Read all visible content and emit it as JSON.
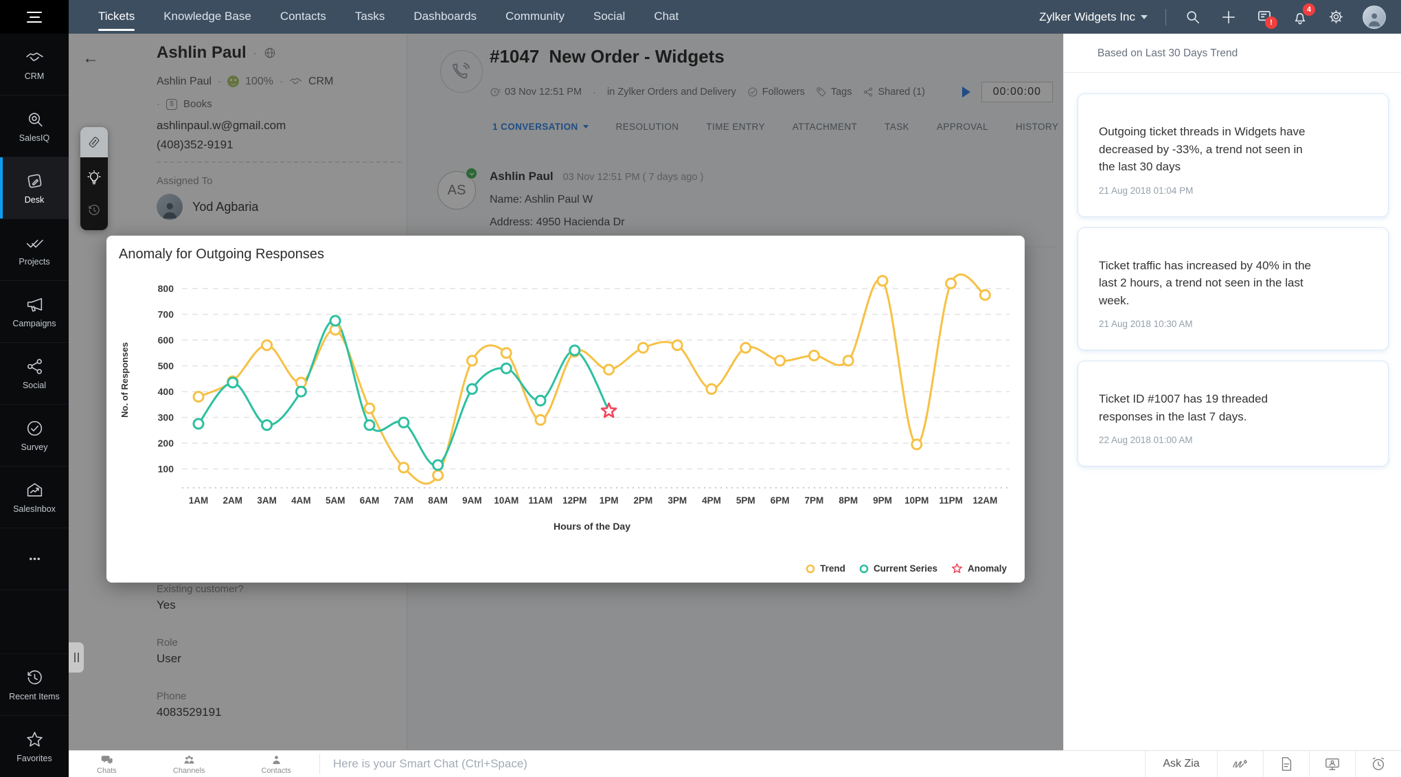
{
  "nav": {
    "items": [
      {
        "label": "Tickets",
        "active": true
      },
      {
        "label": "Knowledge Base"
      },
      {
        "label": "Contacts"
      },
      {
        "label": "Tasks"
      },
      {
        "label": "Dashboards"
      },
      {
        "label": "Community"
      },
      {
        "label": "Social"
      },
      {
        "label": "Chat"
      }
    ],
    "org_name": "Zylker Widgets Inc",
    "notification_count": "4",
    "feedback_badge": "!"
  },
  "sidebar": {
    "items": [
      {
        "label": "CRM",
        "icon": "crm"
      },
      {
        "label": "SalesIQ",
        "icon": "salesiq"
      },
      {
        "label": "Desk",
        "icon": "desk",
        "active": true
      },
      {
        "label": "Projects",
        "icon": "projects"
      },
      {
        "label": "Campaigns",
        "icon": "campaigns"
      },
      {
        "label": "Social",
        "icon": "social"
      },
      {
        "label": "Survey",
        "icon": "survey"
      },
      {
        "label": "SalesInbox",
        "icon": "salesinbox"
      },
      {
        "label": "",
        "icon": "more"
      }
    ],
    "footer_items": [
      {
        "label": "Recent Items",
        "icon": "recent"
      },
      {
        "label": "Favorites",
        "icon": "favorites"
      }
    ]
  },
  "contact": {
    "name": "Ashlin Paul",
    "subname": "Ashlin Paul",
    "score": "100%",
    "crm_label": "CRM",
    "books_label": "Books",
    "books_symbol": "$",
    "email": "ashlinpaul.w@gmail.com",
    "phone_display": "(408)352-9191",
    "assigned_to_label": "Assigned To",
    "assignee": "Yod Agbaria",
    "fields": {
      "existing_label": "Existing customer?",
      "existing_value": "Yes",
      "role_label": "Role",
      "role_value": "User",
      "phone_label": "Phone",
      "phone_value": "4083529191"
    }
  },
  "ticket": {
    "id": "#1047",
    "subject": "New Order - Widgets",
    "created": "03 Nov 12:51 PM",
    "queue": "in Zylker Orders and Delivery",
    "followers_label": "Followers",
    "tags_label": "Tags",
    "shared_label": "Shared (1)",
    "timer": "00:00:00",
    "tabs": [
      {
        "label": "1 CONVERSATION",
        "active": true
      },
      {
        "label": "RESOLUTION"
      },
      {
        "label": "TIME ENTRY"
      },
      {
        "label": "ATTACHMENT"
      },
      {
        "label": "TASK"
      },
      {
        "label": "APPROVAL"
      },
      {
        "label": "HISTORY"
      }
    ]
  },
  "conversation": {
    "avatar_initials": "AS",
    "author": "Ashlin Paul",
    "timestamp": "03 Nov 12:51 PM ( 7 days ago )",
    "line1": "Name: Ashlin Paul W",
    "line2": "Address: 4950 Hacienda Dr"
  },
  "chart_data": {
    "type": "line",
    "title": "Anomaly for Outgoing Responses",
    "xlabel": "Hours of the Day",
    "ylabel": "No. of Responses",
    "ylim": [
      100,
      800
    ],
    "yticks": [
      800,
      700,
      600,
      500,
      400,
      300,
      200,
      100
    ],
    "grid": "dashed horizontal",
    "legend_position": "bottom-right",
    "categories": [
      "1AM",
      "2AM",
      "3AM",
      "4AM",
      "5AM",
      "6AM",
      "7AM",
      "8AM",
      "9AM",
      "10AM",
      "11AM",
      "12PM",
      "1PM",
      "2PM",
      "3PM",
      "4PM",
      "5PM",
      "6PM",
      "7PM",
      "8PM",
      "9PM",
      "10PM",
      "11PM",
      "12AM"
    ],
    "series": [
      {
        "name": "Trend",
        "color": "#f6c145",
        "values": [
          380,
          440,
          580,
          435,
          640,
          335,
          105,
          75,
          520,
          550,
          290,
          555,
          485,
          570,
          580,
          410,
          570,
          520,
          540,
          520,
          830,
          195,
          820,
          775
        ]
      },
      {
        "name": "Current Series",
        "color": "#2cc0a0",
        "values": [
          275,
          435,
          270,
          400,
          675,
          270,
          280,
          115,
          410,
          490,
          365,
          560,
          325
        ]
      }
    ],
    "anomaly": {
      "label": "Anomaly",
      "color": "#f0465a",
      "series": "Current Series",
      "category": "1PM",
      "value": 325
    }
  },
  "zia_panel": {
    "header": "Based on Last 30 Days Trend",
    "cards": [
      {
        "text": "Outgoing ticket threads in Widgets have decreased by -33%, a trend not seen in the last 30 days",
        "time": "21 Aug 2018 01:04 PM"
      },
      {
        "text": "Ticket traffic has increased by 40% in the last 2 hours, a trend not seen in the last week.",
        "time": "21 Aug 2018 10:30 AM"
      },
      {
        "text": "Ticket ID #1007 has 19 threaded responses in the last 7 days.",
        "time": "22 Aug 2018 01:00 AM"
      }
    ]
  },
  "bottom_bar": {
    "items": [
      {
        "label": "Chats",
        "icon": "chats"
      },
      {
        "label": "Channels",
        "icon": "channels"
      },
      {
        "label": "Contacts",
        "icon": "contacts"
      }
    ],
    "placeholder": "Here is your Smart Chat (Ctrl+Space)",
    "ask_zia": "Ask Zia",
    "right_icons": [
      "zia-sketch",
      "document",
      "remote-assist",
      "alarm"
    ]
  }
}
